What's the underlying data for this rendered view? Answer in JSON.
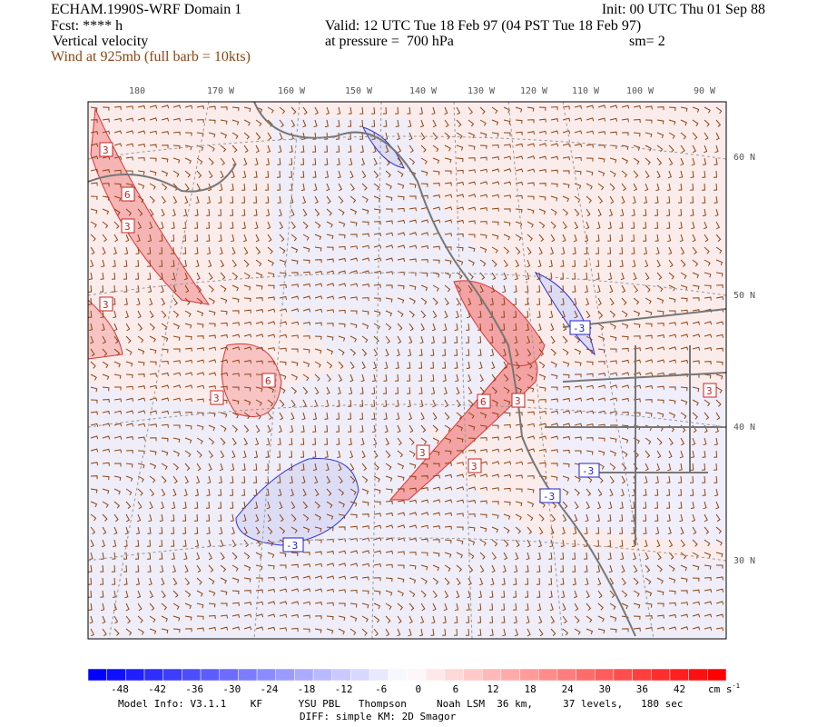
{
  "header": {
    "title": "ECHAM.1990S-WRF Domain 1",
    "init": "Init: 00 UTC Thu 01 Sep 88",
    "fcst": "Fcst: **** h",
    "valid": "Valid: 12 UTC Tue 18 Feb 97 (04 PST Tue 18 Feb 97)",
    "field": "Vertical velocity",
    "pressure": "at pressure =  700 hPa",
    "smooth": "sm= 2",
    "wind": "Wind at 925mb (full barb = 10kts)"
  },
  "map": {
    "lon_labels": [
      "180",
      "170 W",
      "160 W",
      "150 W",
      "140 W",
      "130 W",
      "120 W",
      "110 W",
      "100 W",
      "90 W"
    ],
    "lat_labels": [
      "60 N",
      "50 N",
      "40 N",
      "30 N"
    ],
    "contour_labels": [
      3,
      6,
      3,
      3,
      6,
      3,
      -3,
      6,
      3,
      3,
      3,
      -3,
      -3,
      3,
      -3
    ]
  },
  "colorbar": {
    "ticks": [
      -48,
      -42,
      -36,
      -30,
      -24,
      -18,
      -12,
      -6,
      0,
      6,
      12,
      18,
      24,
      30,
      36,
      42
    ],
    "units": "cm s",
    "units_exp": "-1"
  },
  "footer": {
    "model_info": "Model Info: V3.1.1    KF      YSU PBL   Thompson     Noah LSM  36 km,     37 levels,   180 sec",
    "diff": "DIFF: simple KM: 2D Smagor"
  }
}
